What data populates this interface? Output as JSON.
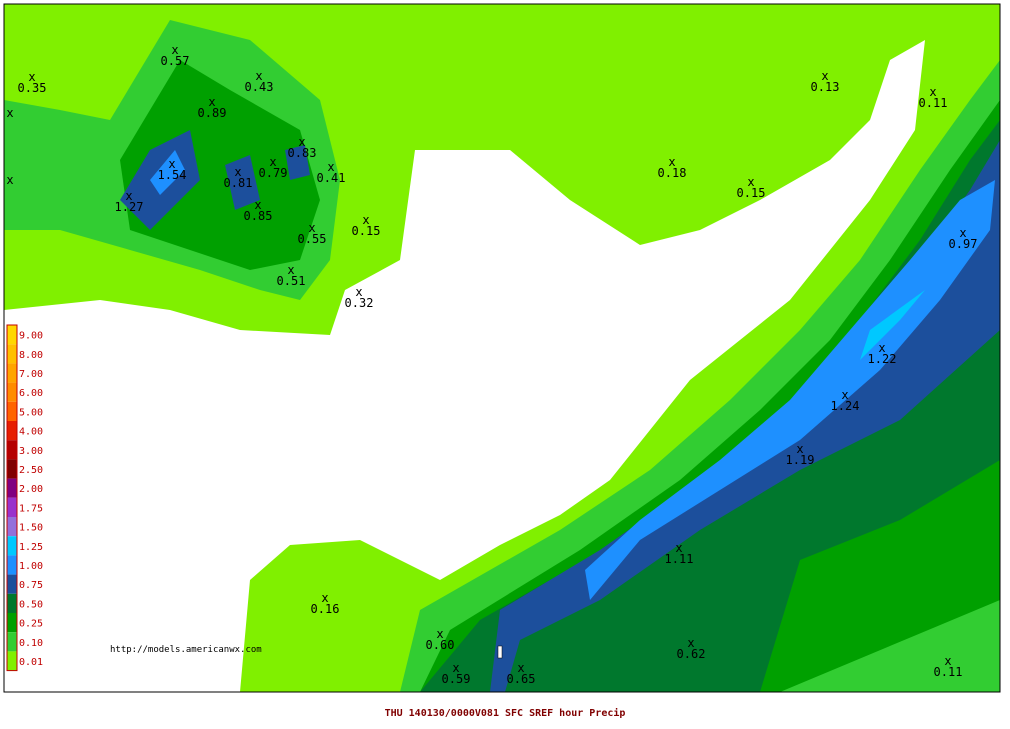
{
  "map": {
    "caption": "THU 140130/0000V081  SFC SREF    hour Precip",
    "source_url": "http://models.americanwx.com",
    "marker": "x",
    "legend": [
      {
        "label": "9.00",
        "color": "#ffd700"
      },
      {
        "label": "8.00",
        "color": "#ffc000"
      },
      {
        "label": "7.00",
        "color": "#ffa500"
      },
      {
        "label": "6.00",
        "color": "#ff8c00"
      },
      {
        "label": "5.00",
        "color": "#ff6400"
      },
      {
        "label": "4.00",
        "color": "#e61e00"
      },
      {
        "label": "3.00",
        "color": "#b40000"
      },
      {
        "label": "2.50",
        "color": "#800000"
      },
      {
        "label": "2.00",
        "color": "#800080"
      },
      {
        "label": "1.75",
        "color": "#9932cc"
      },
      {
        "label": "1.50",
        "color": "#9370db"
      },
      {
        "label": "1.25",
        "color": "#00c8ff"
      },
      {
        "label": "1.00",
        "color": "#1e90ff"
      },
      {
        "label": "0.75",
        "color": "#1c4f9c"
      },
      {
        "label": "0.50",
        "color": "#00782d"
      },
      {
        "label": "0.25",
        "color": "#00a000"
      },
      {
        "label": "0.10",
        "color": "#32cd32"
      },
      {
        "label": "0.01",
        "color": "#80f000"
      }
    ],
    "points": [
      "0.35",
      "0.57",
      "0.43",
      "0.89",
      "1.54",
      "1.27",
      "0.81",
      "0.79",
      "0.83",
      "0.41",
      "0.85",
      "0.55",
      "0.15",
      "0.51",
      "0.32",
      "0.13",
      "0.11",
      "0.18",
      "0.15",
      "0.97",
      "1.22",
      "1.24",
      "1.19",
      "1.11",
      "0.16",
      "0.60",
      "0.62",
      "0.59",
      "0.65",
      "0.11"
    ]
  }
}
